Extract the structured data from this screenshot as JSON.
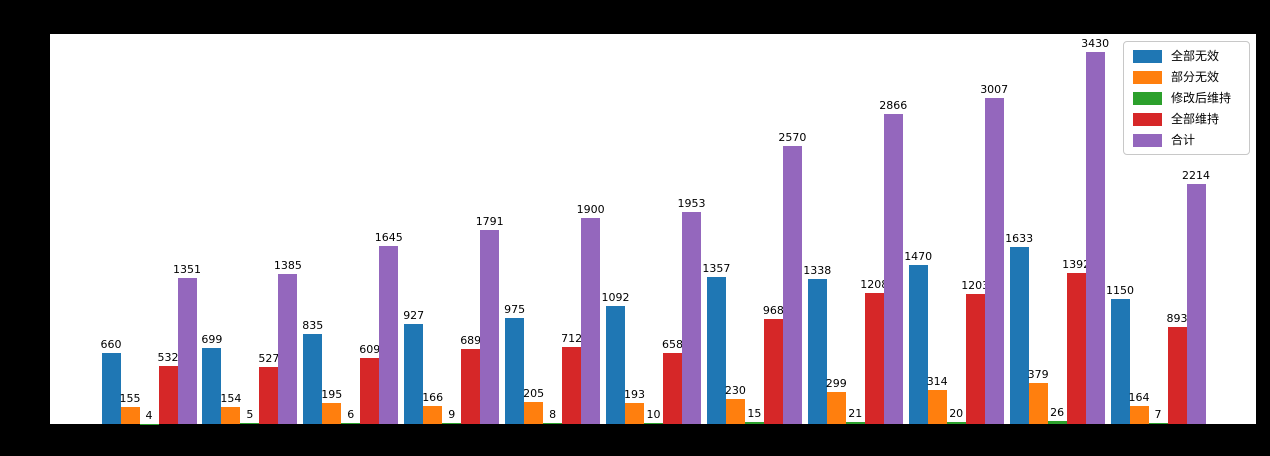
{
  "figure": {
    "background": "#000000",
    "plot_background": "#ffffff"
  },
  "chart_data": {
    "type": "bar",
    "title": "",
    "xlabel": "",
    "ylabel": "",
    "ylim": [
      0,
      3600
    ],
    "grid": false,
    "bar_value_labels": true,
    "legend_position": "upper right",
    "group_count": 11,
    "series": [
      {
        "name": "全部无效",
        "color": "#1f77b4",
        "values": [
          660,
          699,
          835,
          927,
          975,
          1092,
          1357,
          1338,
          1470,
          1633,
          1150
        ]
      },
      {
        "name": "部分无效",
        "color": "#ff7f0e",
        "values": [
          155,
          154,
          195,
          166,
          205,
          193,
          230,
          299,
          314,
          379,
          164
        ]
      },
      {
        "name": "修改后维持",
        "color": "#2ca02c",
        "values": [
          4,
          5,
          6,
          9,
          8,
          10,
          15,
          21,
          20,
          26,
          7
        ]
      },
      {
        "name": "全部维持",
        "color": "#d62728",
        "values": [
          532,
          527,
          609,
          689,
          712,
          658,
          968,
          1208,
          1203,
          1392,
          893
        ]
      },
      {
        "name": "合计",
        "color": "#9467bd",
        "values": [
          1351,
          1385,
          1645,
          1791,
          1900,
          1953,
          2570,
          2866,
          3007,
          3430,
          2214
        ]
      }
    ]
  }
}
